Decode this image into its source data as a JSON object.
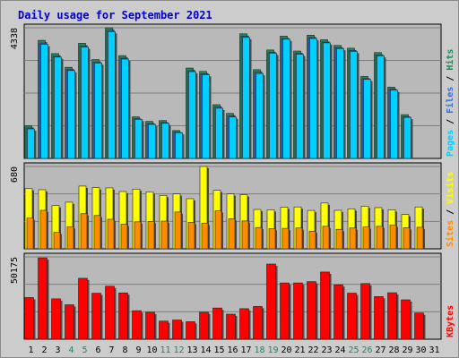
{
  "chart_data": {
    "type": "bar",
    "title": "Daily usage for September 2021",
    "categories": [
      "1",
      "2",
      "3",
      "4",
      "5",
      "6",
      "7",
      "8",
      "9",
      "10",
      "11",
      "12",
      "13",
      "14",
      "15",
      "16",
      "17",
      "18",
      "19",
      "20",
      "21",
      "22",
      "23",
      "24",
      "25",
      "26",
      "27",
      "28",
      "29",
      "30",
      "31"
    ],
    "weekend_days": [
      "4",
      "5",
      "11",
      "12",
      "18",
      "19",
      "25",
      "26"
    ],
    "panels": [
      {
        "id": "pages-files-hits",
        "max_label": "4338",
        "ymax": 4338,
        "vlabels": [
          "Pages",
          "Files",
          "Hits"
        ],
        "series": [
          {
            "name": "Hits",
            "color": "#1e8a5a",
            "values": [
              1088,
              3920,
              3480,
              3025,
              3821,
              3281,
              4338,
              3413,
              1380,
              1228,
              1256,
              926,
              2999,
              2888,
              1784,
              1493,
              4136,
              2946,
              3599,
              4059,
              3564,
              4092,
              3940,
              3750,
              3658,
              2721,
              3513,
              2365,
              1453,
              0,
              0
            ]
          },
          {
            "name": "Files",
            "color": "#3a6ed8",
            "values": [
              1010,
              3828,
              3390,
              2944,
              3731,
              3196,
              4250,
              3326,
              1314,
              1153,
              1189,
              868,
              2911,
              2806,
              1701,
              1402,
              4056,
              2860,
              3516,
              3976,
              3483,
              4008,
              3860,
              3671,
              3581,
              2646,
              3435,
              2292,
              1383,
              0,
              0
            ]
          },
          {
            "name": "Pages",
            "color": "#00d0ff",
            "values": [
              980,
              3790,
              3363,
              2918,
              3697,
              3168,
              4210,
              3298,
              1299,
              1130,
              1166,
              855,
              2880,
              2782,
              1666,
              1375,
              4017,
              2818,
              3495,
              3957,
              3458,
              3982,
              3836,
              3648,
              3553,
              2626,
              3409,
              2268,
              1364,
              0,
              0
            ]
          }
        ]
      },
      {
        "id": "visits-sites",
        "max_label": "680",
        "ymax": 680,
        "vlabels": [
          "Sites",
          "Visits"
        ],
        "series": [
          {
            "name": "Visits",
            "color": "#ffff00",
            "values": [
              497,
              488,
              357,
              385,
              518,
              505,
              503,
              473,
              493,
              470,
              441,
              453,
              414,
              680,
              483,
              453,
              446,
              325,
              322,
              344,
              346,
              317,
              378,
              318,
              330,
              352,
              340,
              322,
              283,
              346,
              0
            ]
          },
          {
            "name": "Sites",
            "color": "#ff8c00",
            "values": [
              254,
              318,
              136,
              183,
              290,
              275,
              244,
              203,
              223,
              227,
              229,
              304,
              218,
              211,
              314,
              248,
              230,
              176,
              167,
              169,
              172,
              146,
              186,
              161,
              172,
              181,
              186,
              196,
              174,
              178,
              0
            ]
          }
        ]
      },
      {
        "id": "kbytes",
        "max_label": "50175",
        "ymax": 50175,
        "vlabels": [
          "KBytes"
        ],
        "series": [
          {
            "name": "KBytes",
            "color": "#ff0000",
            "values": [
              25390,
              49570,
              24610,
              20980,
              37120,
              28050,
              32310,
              28210,
              17360,
              16440,
              11040,
              11700,
              10670,
              16490,
              19010,
              15250,
              18600,
              19960,
              45810,
              34300,
              34300,
              35100,
              40950,
              33150,
              28070,
              33930,
              26000,
              28310,
              24000,
              15990,
              0
            ]
          }
        ]
      }
    ],
    "colors": {
      "title": "#0000cc",
      "plot_bg": "#b9b9b9",
      "grid": "#808080",
      "weekend_label": "#1e8a5a",
      "weekday_label": "#000000"
    }
  }
}
